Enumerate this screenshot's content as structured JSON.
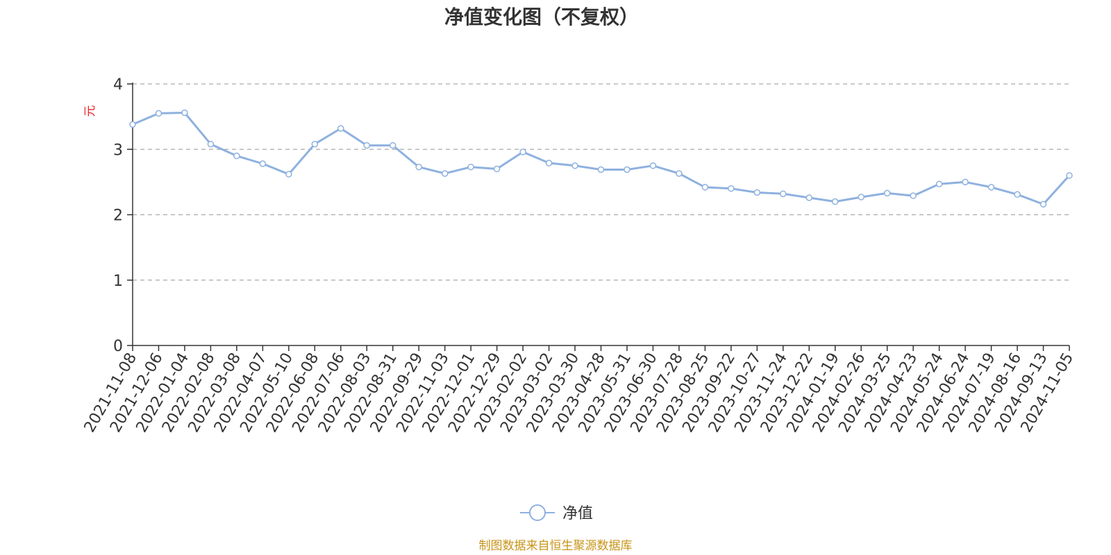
{
  "chart_data": {
    "type": "line",
    "title": "净值变化图（不复权）",
    "xlabel": "",
    "ylabel": "元",
    "ylim": [
      0,
      4
    ],
    "y_ticks": [
      "0",
      "1",
      "2",
      "3",
      "4"
    ],
    "grid": "horizontal-dashed",
    "legend_position": "bottom-center",
    "categories": [
      "2021-11-08",
      "2021-12-06",
      "2022-01-04",
      "2022-02-08",
      "2022-03-08",
      "2022-04-07",
      "2022-05-10",
      "2022-06-08",
      "2022-07-06",
      "2022-08-03",
      "2022-08-31",
      "2022-09-29",
      "2022-11-03",
      "2022-12-01",
      "2022-12-29",
      "2023-02-02",
      "2023-03-02",
      "2023-03-30",
      "2023-04-28",
      "2023-05-31",
      "2023-06-30",
      "2023-07-28",
      "2023-08-25",
      "2023-09-22",
      "2023-10-27",
      "2023-11-24",
      "2023-12-22",
      "2024-01-19",
      "2024-02-26",
      "2024-03-25",
      "2024-04-23",
      "2024-05-24",
      "2024-06-24",
      "2024-07-19",
      "2024-08-16",
      "2024-09-13",
      "2024-11-05"
    ],
    "series": [
      {
        "name": "净值",
        "color": "#8eb1df",
        "values": [
          3.38,
          3.55,
          3.56,
          3.08,
          2.9,
          2.78,
          2.62,
          3.08,
          3.32,
          3.06,
          3.06,
          2.73,
          2.63,
          2.73,
          2.7,
          2.96,
          2.79,
          2.75,
          2.69,
          2.69,
          2.75,
          2.63,
          2.42,
          2.4,
          2.34,
          2.32,
          2.26,
          2.2,
          2.27,
          2.33,
          2.29,
          2.47,
          2.5,
          2.42,
          2.31,
          2.16,
          2.6
        ]
      }
    ]
  },
  "source_note": "制图数据来自恒生聚源数据库"
}
